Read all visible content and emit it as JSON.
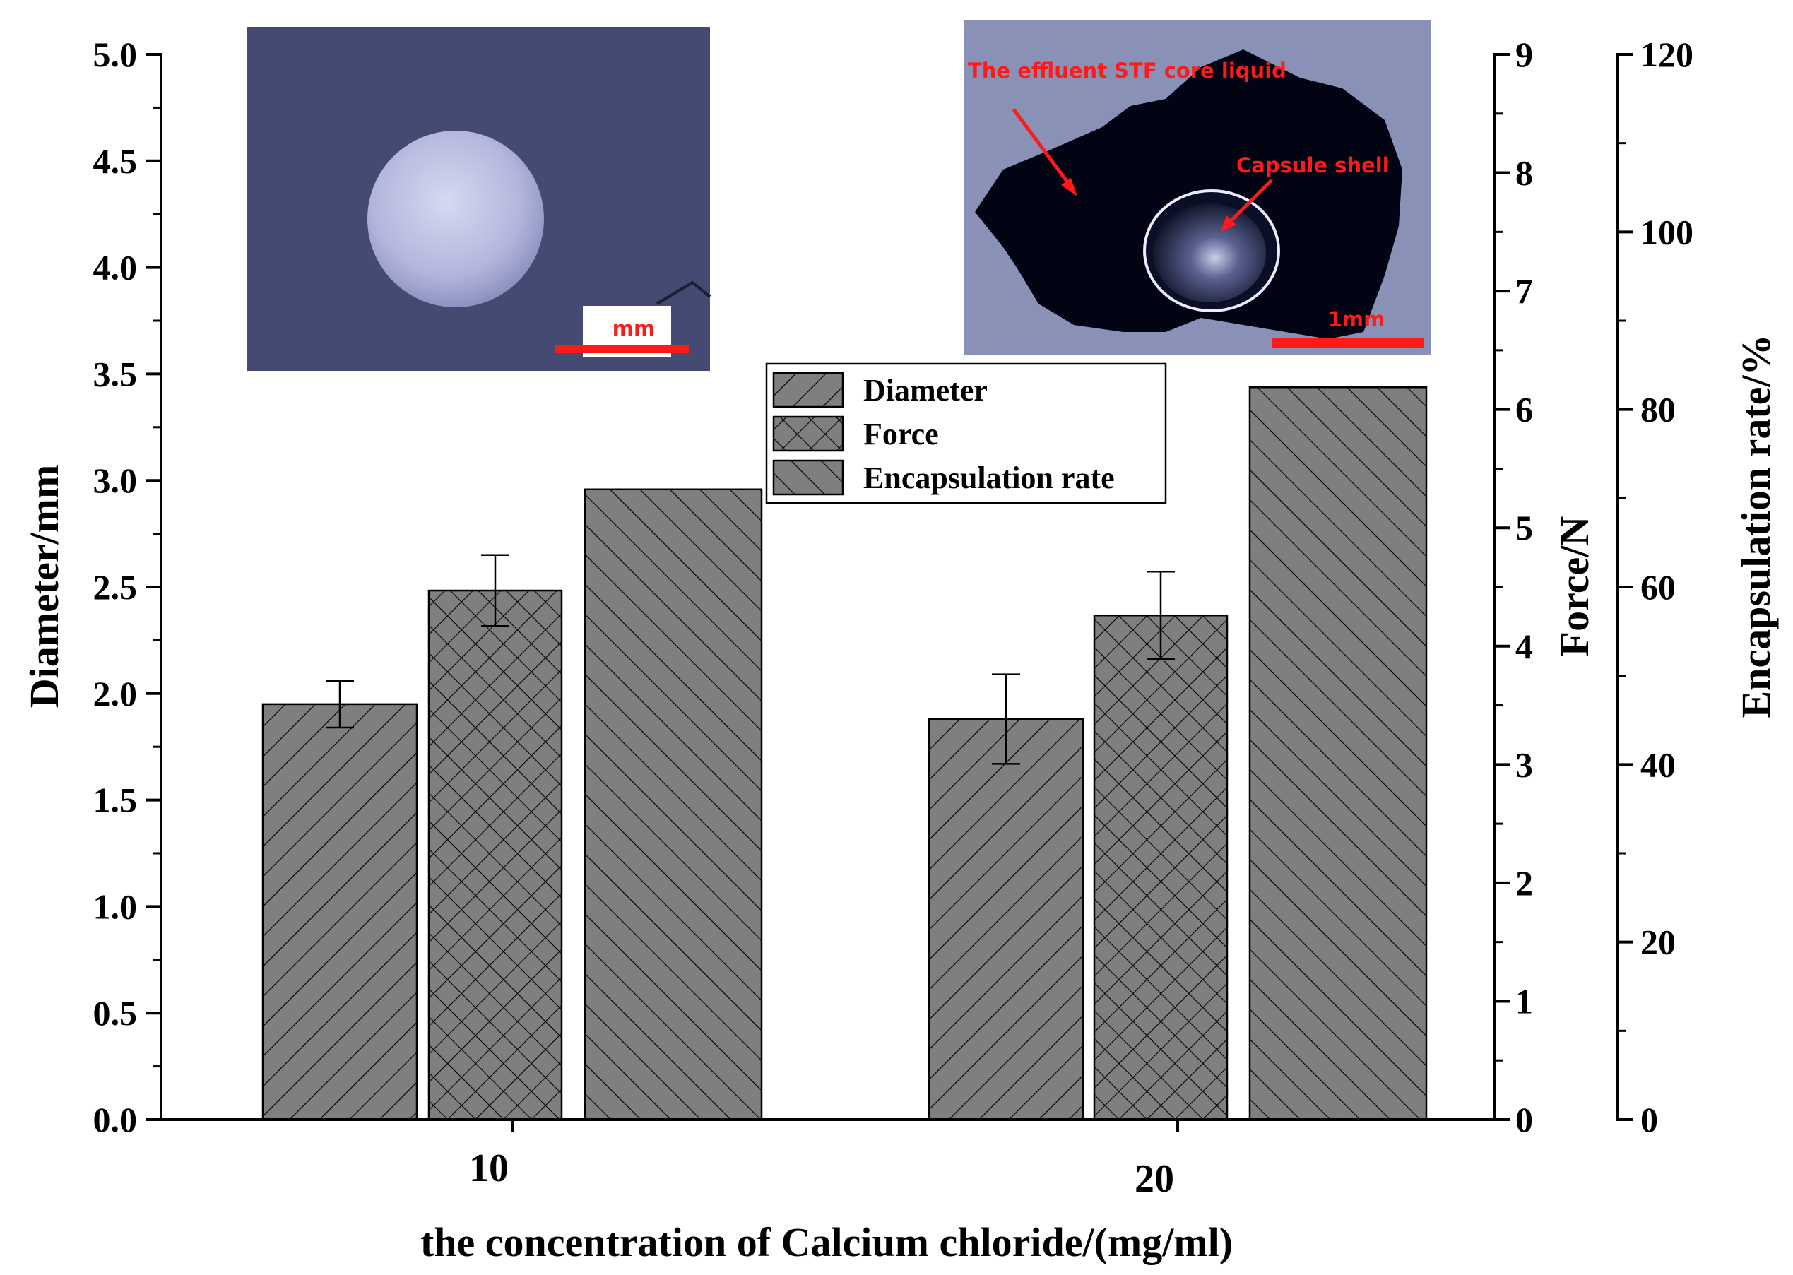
{
  "chart_data": {
    "type": "bar",
    "xlabel": "the concentration of Calcium chloride/(mg/ml)",
    "categories": [
      "10",
      "20"
    ],
    "series": [
      {
        "name": "Diameter",
        "axis": "left",
        "values": [
          1.95,
          1.88
        ],
        "errors": [
          0.11,
          0.21
        ],
        "hatch": "forward-diagonal"
      },
      {
        "name": "Force",
        "axis": "right1",
        "values": [
          4.47,
          4.26
        ],
        "errors": [
          0.3,
          0.37
        ],
        "hatch": "crosshatch"
      },
      {
        "name": "Encapsulation rate",
        "axis": "right2",
        "values": [
          71,
          82.5
        ],
        "errors": null,
        "hatch": "back-diagonal"
      }
    ],
    "axes": {
      "left": {
        "label": "Diameter/mm",
        "min": 0,
        "max": 5,
        "ticks": [
          "0.0",
          "0.5",
          "1.0",
          "1.5",
          "2.0",
          "2.5",
          "3.0",
          "3.5",
          "4.0",
          "4.5",
          "5.0"
        ]
      },
      "right1": {
        "label": "Force/N",
        "min": 0,
        "max": 9,
        "ticks": [
          "0",
          "1",
          "2",
          "3",
          "4",
          "5",
          "6",
          "7",
          "8",
          "9"
        ]
      },
      "right2": {
        "label": "Encapsulation rate/%",
        "min": 0,
        "max": 120,
        "ticks": [
          "0",
          "20",
          "40",
          "60",
          "80",
          "100",
          "120"
        ]
      }
    },
    "legend": {
      "placement": "top-center",
      "entries": [
        "Diameter",
        "Force",
        "Encapsulation rate"
      ]
    },
    "bar_color": "#7f7f7f",
    "grid": false,
    "insets": [
      {
        "scale_label": "mm"
      },
      {
        "annotations": [
          "The effluent STF core liquid",
          "Capsule shell"
        ],
        "scale_label": "1mm"
      }
    ]
  }
}
